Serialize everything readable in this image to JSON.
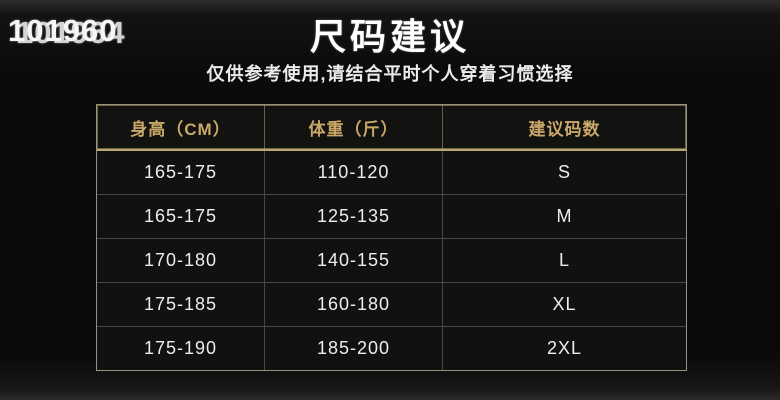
{
  "watermark": {
    "line1": "101960",
    "line2": "101964"
  },
  "header": {
    "title": "尺码建议",
    "subtitle": "仅供参考使用,请结合平时个人穿着习惯选择"
  },
  "chart_data": {
    "type": "table",
    "title": "尺码建议",
    "columns": [
      "身高（CM）",
      "体重（斤）",
      "建议码数"
    ],
    "rows": [
      [
        "165-175",
        "110-120",
        "S"
      ],
      [
        "165-175",
        "125-135",
        "M"
      ],
      [
        "170-180",
        "140-155",
        "L"
      ],
      [
        "175-185",
        "160-180",
        "XL"
      ],
      [
        "175-190",
        "185-200",
        "2XL"
      ]
    ]
  },
  "colors": {
    "background": "#0a0a0a",
    "header_text_gold": "#c9a868",
    "header_border_gold": "#b9a873",
    "table_border": "#97937f",
    "cell_text": "#ededed",
    "watermark_text": "#f6f6f6"
  }
}
